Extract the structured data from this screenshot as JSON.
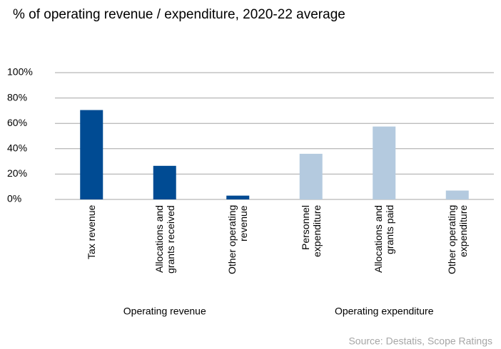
{
  "chart_data": {
    "type": "bar",
    "title": "% of operating revenue / expenditure, 2020-22 average",
    "source": "Source: Destatis, Scope Ratings",
    "ylim": [
      0,
      100
    ],
    "yticks": [
      {
        "value": 0,
        "label": "0%"
      },
      {
        "value": 20,
        "label": "20%"
      },
      {
        "value": 40,
        "label": "40%"
      },
      {
        "value": 60,
        "label": "60%"
      },
      {
        "value": 80,
        "label": "80%"
      },
      {
        "value": 100,
        "label": "100%"
      }
    ],
    "grid": true,
    "groups": [
      {
        "name": "Operating revenue",
        "color": "#004b93",
        "categories": [
          "Tax revenue",
          "Allocations and grants received",
          "Other operating revenue"
        ],
        "values": [
          70.5,
          26.5,
          3
        ]
      },
      {
        "name": "Operating expenditure",
        "color": "#b4cadf",
        "categories": [
          "Personnel expenditure",
          "Allocations and grants paid",
          "Other operating expenditure"
        ],
        "values": [
          36,
          57.5,
          7
        ]
      }
    ]
  }
}
